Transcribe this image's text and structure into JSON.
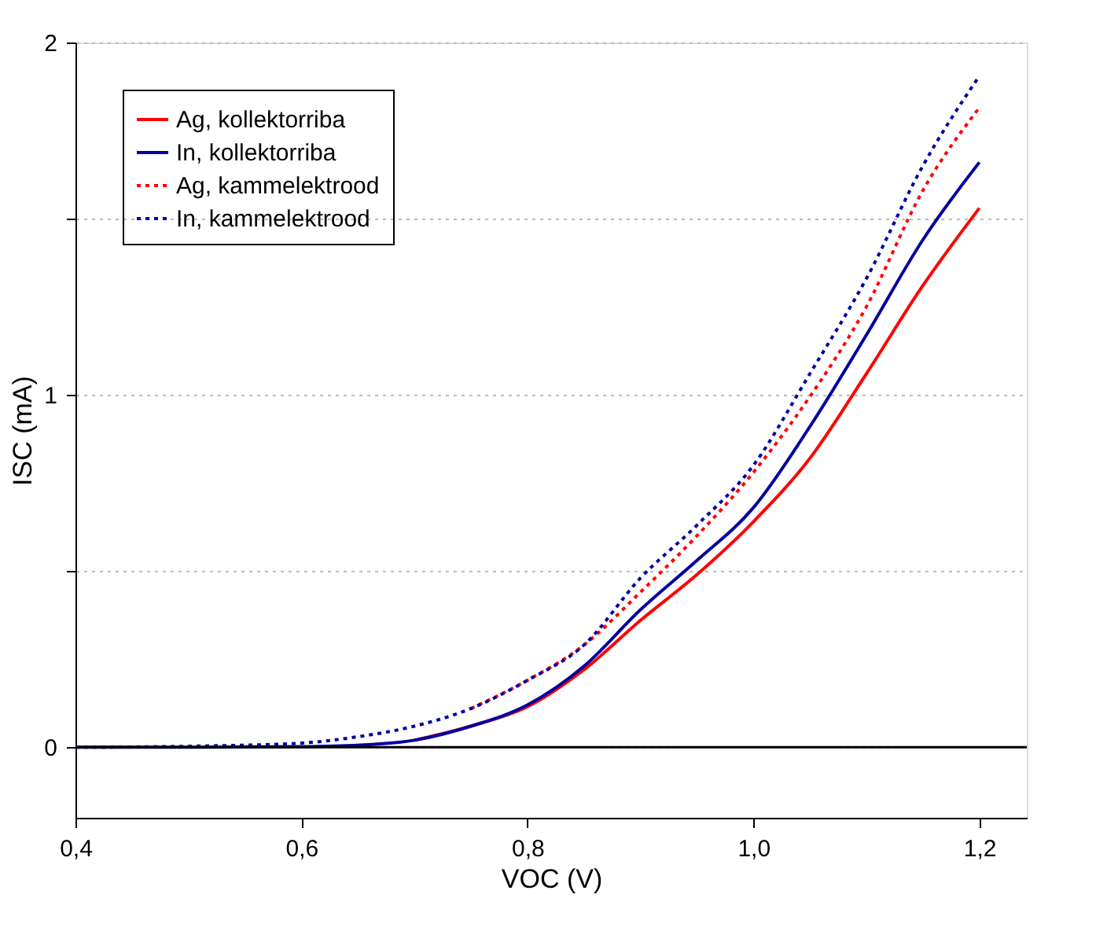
{
  "chart_data": {
    "type": "line",
    "xlabel": "VOC (V)",
    "ylabel": "ISC (mA)",
    "x": [
      0.4,
      0.5,
      0.6,
      0.65,
      0.7,
      0.75,
      0.8,
      0.85,
      0.9,
      0.95,
      1.0,
      1.05,
      1.1,
      1.15,
      1.2
    ],
    "series": [
      {
        "name": "Ag, kollektorriba",
        "color": "#ff0000",
        "line_style": "solid",
        "values": [
          null,
          null,
          null,
          null,
          0.02,
          0.06,
          0.115,
          0.22,
          0.36,
          0.49,
          0.64,
          0.82,
          1.06,
          1.31,
          1.53
        ]
      },
      {
        "name": "In, kollektorriba",
        "color": "#0000a0",
        "line_style": "solid",
        "values": [
          0,
          0,
          0.002,
          0.006,
          0.02,
          0.06,
          0.12,
          0.23,
          0.39,
          0.53,
          0.68,
          0.91,
          1.17,
          1.44,
          1.66
        ]
      },
      {
        "name": "Ag, kammelektrood",
        "color": "#ff0000",
        "line_style": "dotted",
        "values": [
          null,
          null,
          null,
          null,
          null,
          0.11,
          0.19,
          0.29,
          0.44,
          0.6,
          0.78,
          0.995,
          1.25,
          1.58,
          1.815
        ]
      },
      {
        "name": "In, kammelektrood",
        "color": "#0000a0",
        "line_style": "dotted",
        "values": [
          0,
          0.003,
          0.012,
          0.03,
          0.06,
          0.11,
          0.19,
          0.29,
          0.48,
          0.63,
          0.8,
          1.06,
          1.33,
          1.65,
          1.905
        ]
      }
    ],
    "xlim": [
      0.4,
      1.242
    ],
    "ylim": [
      -0.2,
      2
    ],
    "xticks": [
      {
        "value": 0.4,
        "label": "0,4"
      },
      {
        "value": 0.6,
        "label": "0,6"
      },
      {
        "value": 0.8,
        "label": "0,8"
      },
      {
        "value": 1.0,
        "label": "1,0"
      },
      {
        "value": 1.2,
        "label": "1,2"
      }
    ],
    "yticks": [
      0,
      {
        "value": 0.5,
        "label": null
      },
      1,
      {
        "value": 1.5,
        "label": null
      },
      2
    ],
    "ref_lines": [
      {
        "axis": "y",
        "value": 0,
        "color": "#000000",
        "line_style": "solid"
      }
    ],
    "grid": "y",
    "legend": "top left",
    "marker": "none"
  }
}
